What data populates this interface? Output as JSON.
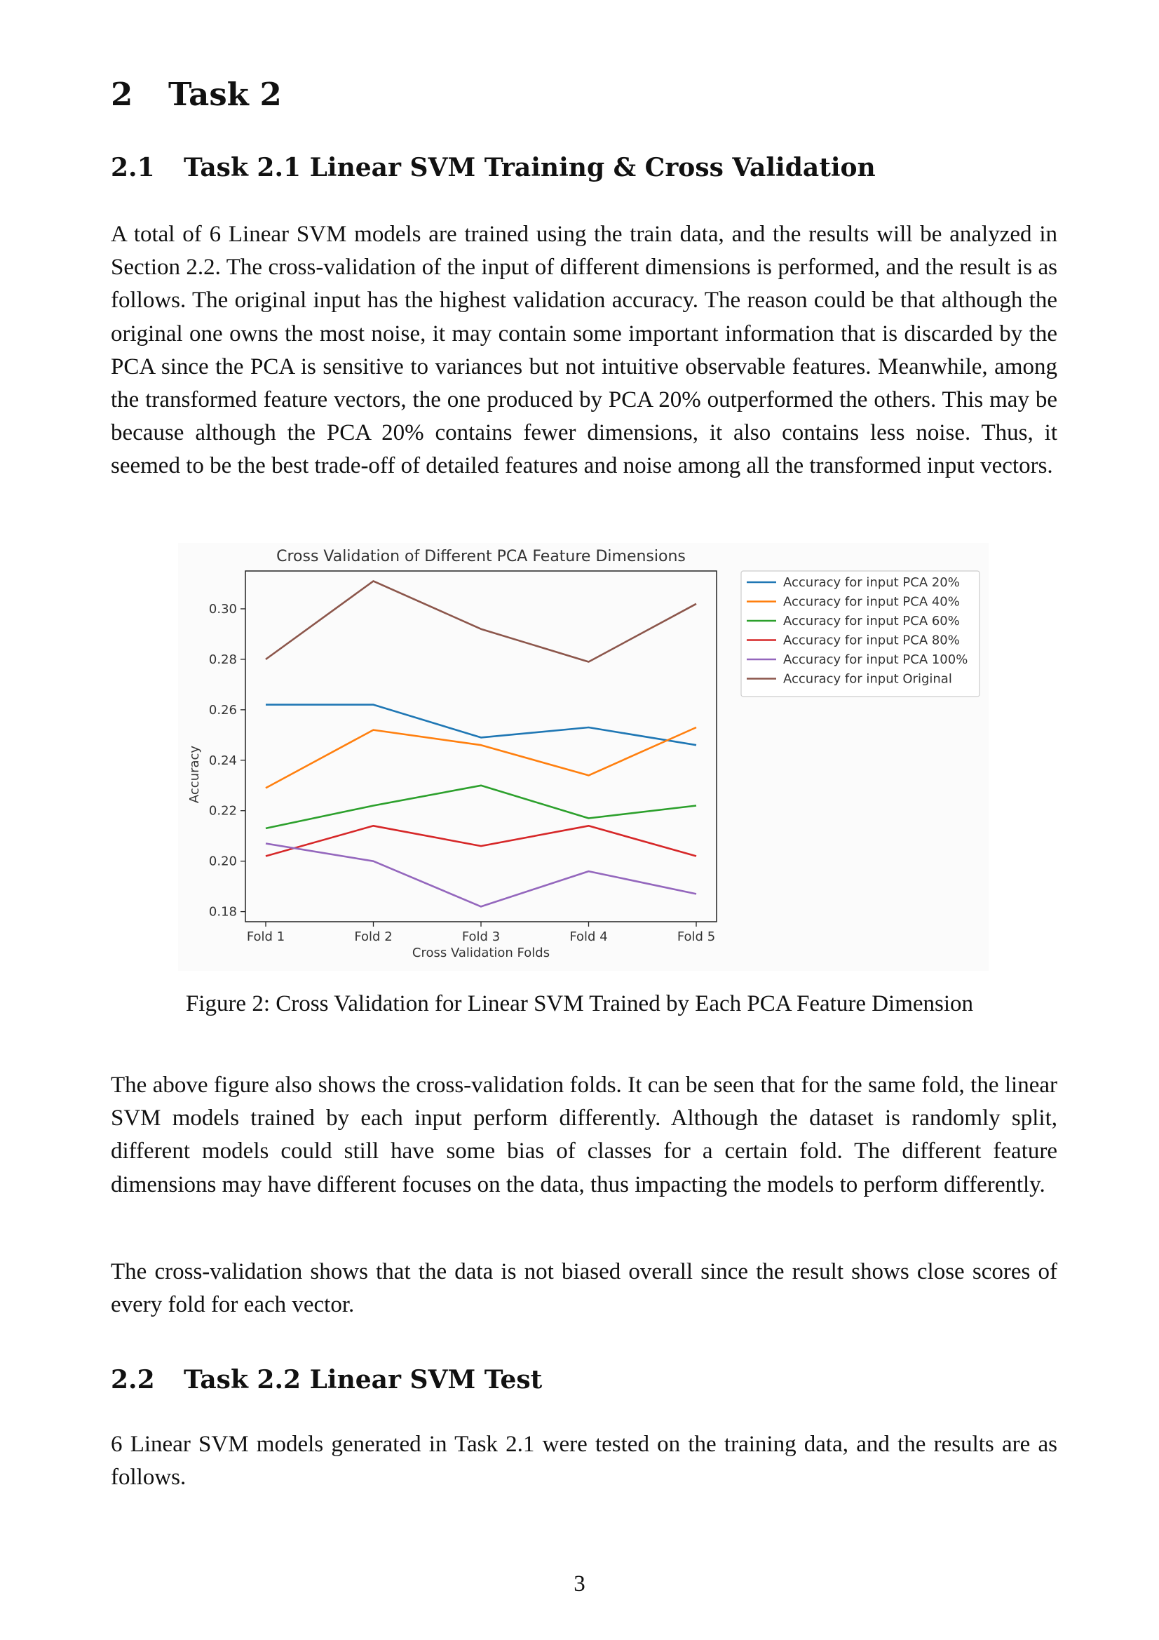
{
  "section": {
    "number": "2",
    "title": "Task 2"
  },
  "subsection_1": {
    "number": "2.1",
    "title": "Task 2.1 Linear SVM Training & Cross Validation",
    "paragraph": "A total of 6 Linear SVM models are trained using the train data, and the results will be analyzed in Section 2.2. The cross-validation of the input of different dimensions is performed, and the result is as follows. The original input has the highest validation accuracy. The reason could be that although the original one owns the most noise, it may contain some important information that is discarded by the PCA since the PCA is sensitive to variances but not intuitive observable features. Meanwhile, among the transformed feature vectors, the one produced by PCA 20% outperformed the others. This may be because although the PCA 20% contains fewer dimensions, it also contains less noise. Thus, it seemed to be the best trade-off of detailed features and noise among all the transformed input vectors."
  },
  "figure": {
    "caption": "Figure 2: Cross Validation for Linear SVM Trained by Each PCA Feature Dimension"
  },
  "paragraphs_after": [
    "The above figure also shows the cross-validation folds. It can be seen that for the same fold, the linear SVM models trained by each input perform differently. Although the dataset is randomly split, different models could still have some bias of classes for a certain fold. The different feature dimensions may have different focuses on the data, thus impacting the models to perform differently.",
    "The cross-validation shows that the data is not biased overall since the result shows close scores of every fold for each vector."
  ],
  "subsection_2": {
    "number": "2.2",
    "title": "Task 2.2 Linear SVM Test",
    "paragraph": "6 Linear SVM models generated in Task 2.1 were tested on the training data, and the results are as follows."
  },
  "page_number": "3",
  "chart_data": {
    "type": "line",
    "title": "Cross Validation of Different PCA Feature Dimensions",
    "xlabel": "Cross Validation Folds",
    "ylabel": "Accuracy",
    "categories": [
      "Fold 1",
      "Fold 2",
      "Fold 3",
      "Fold 4",
      "Fold 5"
    ],
    "ylim": [
      0.176,
      0.315
    ],
    "yticks": [
      0.18,
      0.2,
      0.22,
      0.24,
      0.26,
      0.28,
      0.3
    ],
    "ytick_labels": [
      "0.18",
      "0.20",
      "0.22",
      "0.24",
      "0.26",
      "0.28",
      "0.30"
    ],
    "grid": false,
    "legend_position": "outside-right",
    "series": [
      {
        "name": "Accuracy for input PCA 20%",
        "color": "#1f77b4",
        "values": [
          0.262,
          0.262,
          0.249,
          0.253,
          0.246
        ]
      },
      {
        "name": "Accuracy for input PCA 40%",
        "color": "#ff7f0e",
        "values": [
          0.229,
          0.252,
          0.246,
          0.234,
          0.253
        ]
      },
      {
        "name": "Accuracy for input PCA 60%",
        "color": "#2ca02c",
        "values": [
          0.213,
          0.222,
          0.23,
          0.217,
          0.222
        ]
      },
      {
        "name": "Accuracy for input PCA 80%",
        "color": "#d62728",
        "values": [
          0.202,
          0.214,
          0.206,
          0.214,
          0.202
        ]
      },
      {
        "name": "Accuracy for input PCA 100%",
        "color": "#9467bd",
        "values": [
          0.207,
          0.2,
          0.182,
          0.196,
          0.187
        ]
      },
      {
        "name": "Accuracy for input Original",
        "color": "#8c564b",
        "values": [
          0.28,
          0.311,
          0.292,
          0.279,
          0.302
        ]
      }
    ]
  }
}
